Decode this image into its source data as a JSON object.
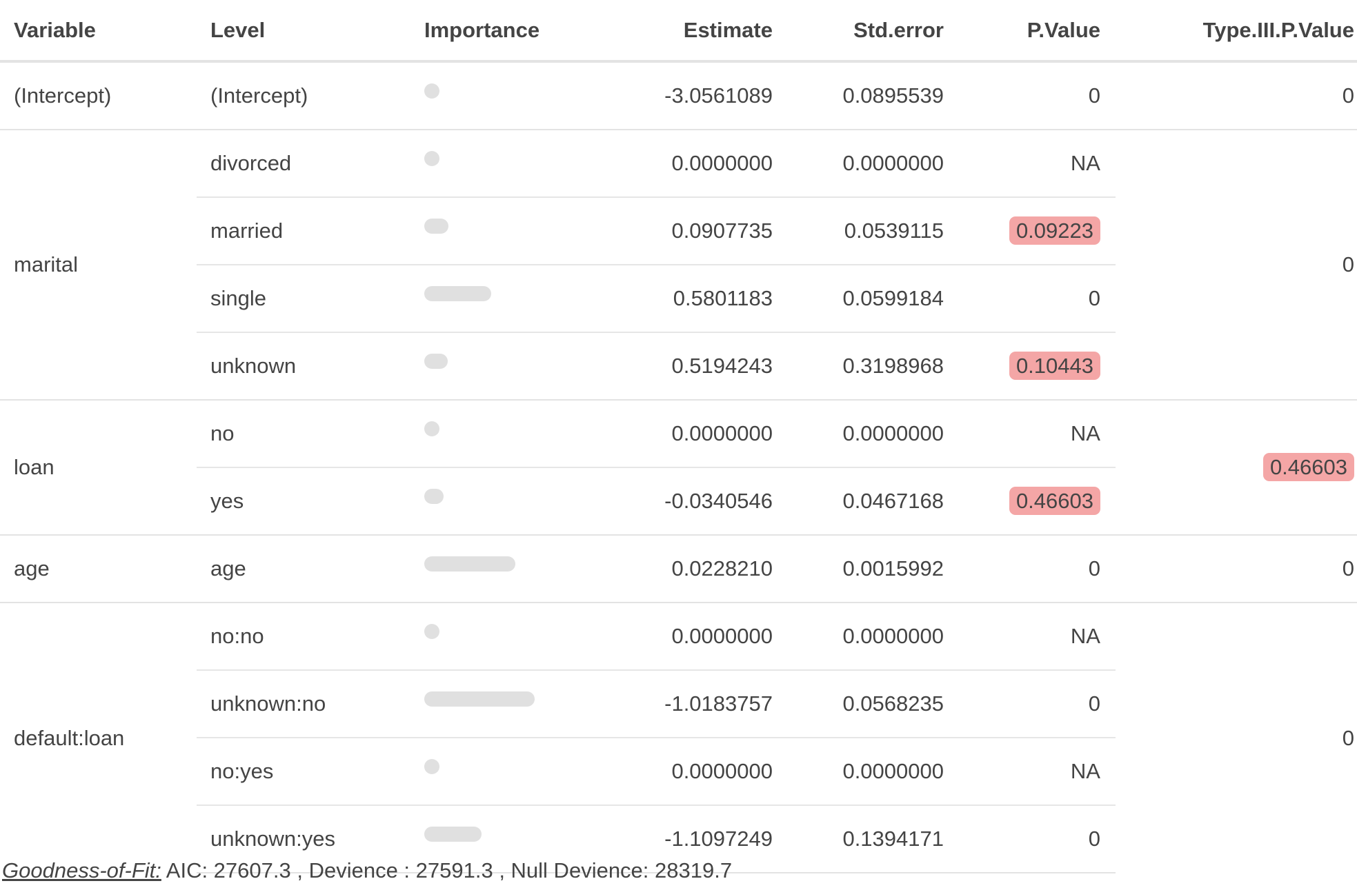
{
  "columns": [
    "Variable",
    "Level",
    "Importance",
    "Estimate",
    "Std.error",
    "P.Value",
    "Type.III.P.Value"
  ],
  "badge_color": "#f4a6a6",
  "groups": [
    {
      "variable": "(Intercept)",
      "type3": "0",
      "type3_highlight": false,
      "rows": [
        {
          "level": "(Intercept)",
          "importance": 0,
          "estimate": "-3.0561089",
          "se": "0.0895539",
          "p": "0",
          "p_highlight": false
        }
      ]
    },
    {
      "variable": "marital",
      "type3": "0",
      "type3_highlight": false,
      "rows": [
        {
          "level": "divorced",
          "importance": 0,
          "estimate": "0.0000000",
          "se": "0.0000000",
          "p": "NA",
          "p_highlight": false
        },
        {
          "level": "married",
          "importance": 1.68,
          "estimate": "0.0907735",
          "se": "0.0539115",
          "p": "0.09223",
          "p_highlight": true
        },
        {
          "level": "single",
          "importance": 9.68,
          "estimate": "0.5801183",
          "se": "0.0599184",
          "p": "0",
          "p_highlight": false
        },
        {
          "level": "unknown",
          "importance": 1.62,
          "estimate": "0.5194243",
          "se": "0.3198968",
          "p": "0.10443",
          "p_highlight": true
        }
      ]
    },
    {
      "variable": "loan",
      "type3": "0.46603",
      "type3_highlight": true,
      "rows": [
        {
          "level": "no",
          "importance": 0,
          "estimate": "0.0000000",
          "se": "0.0000000",
          "p": "NA",
          "p_highlight": false
        },
        {
          "level": "yes",
          "importance": 0.73,
          "estimate": "-0.0340546",
          "se": "0.0467168",
          "p": "0.46603",
          "p_highlight": true
        }
      ]
    },
    {
      "variable": "age",
      "type3": "0",
      "type3_highlight": false,
      "rows": [
        {
          "level": "age",
          "importance": 14.27,
          "estimate": "0.0228210",
          "se": "0.0015992",
          "p": "0",
          "p_highlight": false
        }
      ]
    },
    {
      "variable": "default:loan",
      "type3": "0",
      "type3_highlight": false,
      "rows": [
        {
          "level": "no:no",
          "importance": 0,
          "estimate": "0.0000000",
          "se": "0.0000000",
          "p": "NA",
          "p_highlight": false
        },
        {
          "level": "unknown:no",
          "importance": 17.92,
          "estimate": "-1.0183757",
          "se": "0.0568235",
          "p": "0",
          "p_highlight": false
        },
        {
          "level": "no:yes",
          "importance": 0,
          "estimate": "0.0000000",
          "se": "0.0000000",
          "p": "NA",
          "p_highlight": false
        },
        {
          "level": "unknown:yes",
          "importance": 7.96,
          "estimate": "-1.1097249",
          "se": "0.1394171",
          "p": "0",
          "p_highlight": false
        }
      ]
    }
  ],
  "footer": {
    "label": "Goodness-of-Fit:",
    "text": " AIC: 27607.3 , Devience : 27591.3 , Null Devience: 28319.7"
  }
}
